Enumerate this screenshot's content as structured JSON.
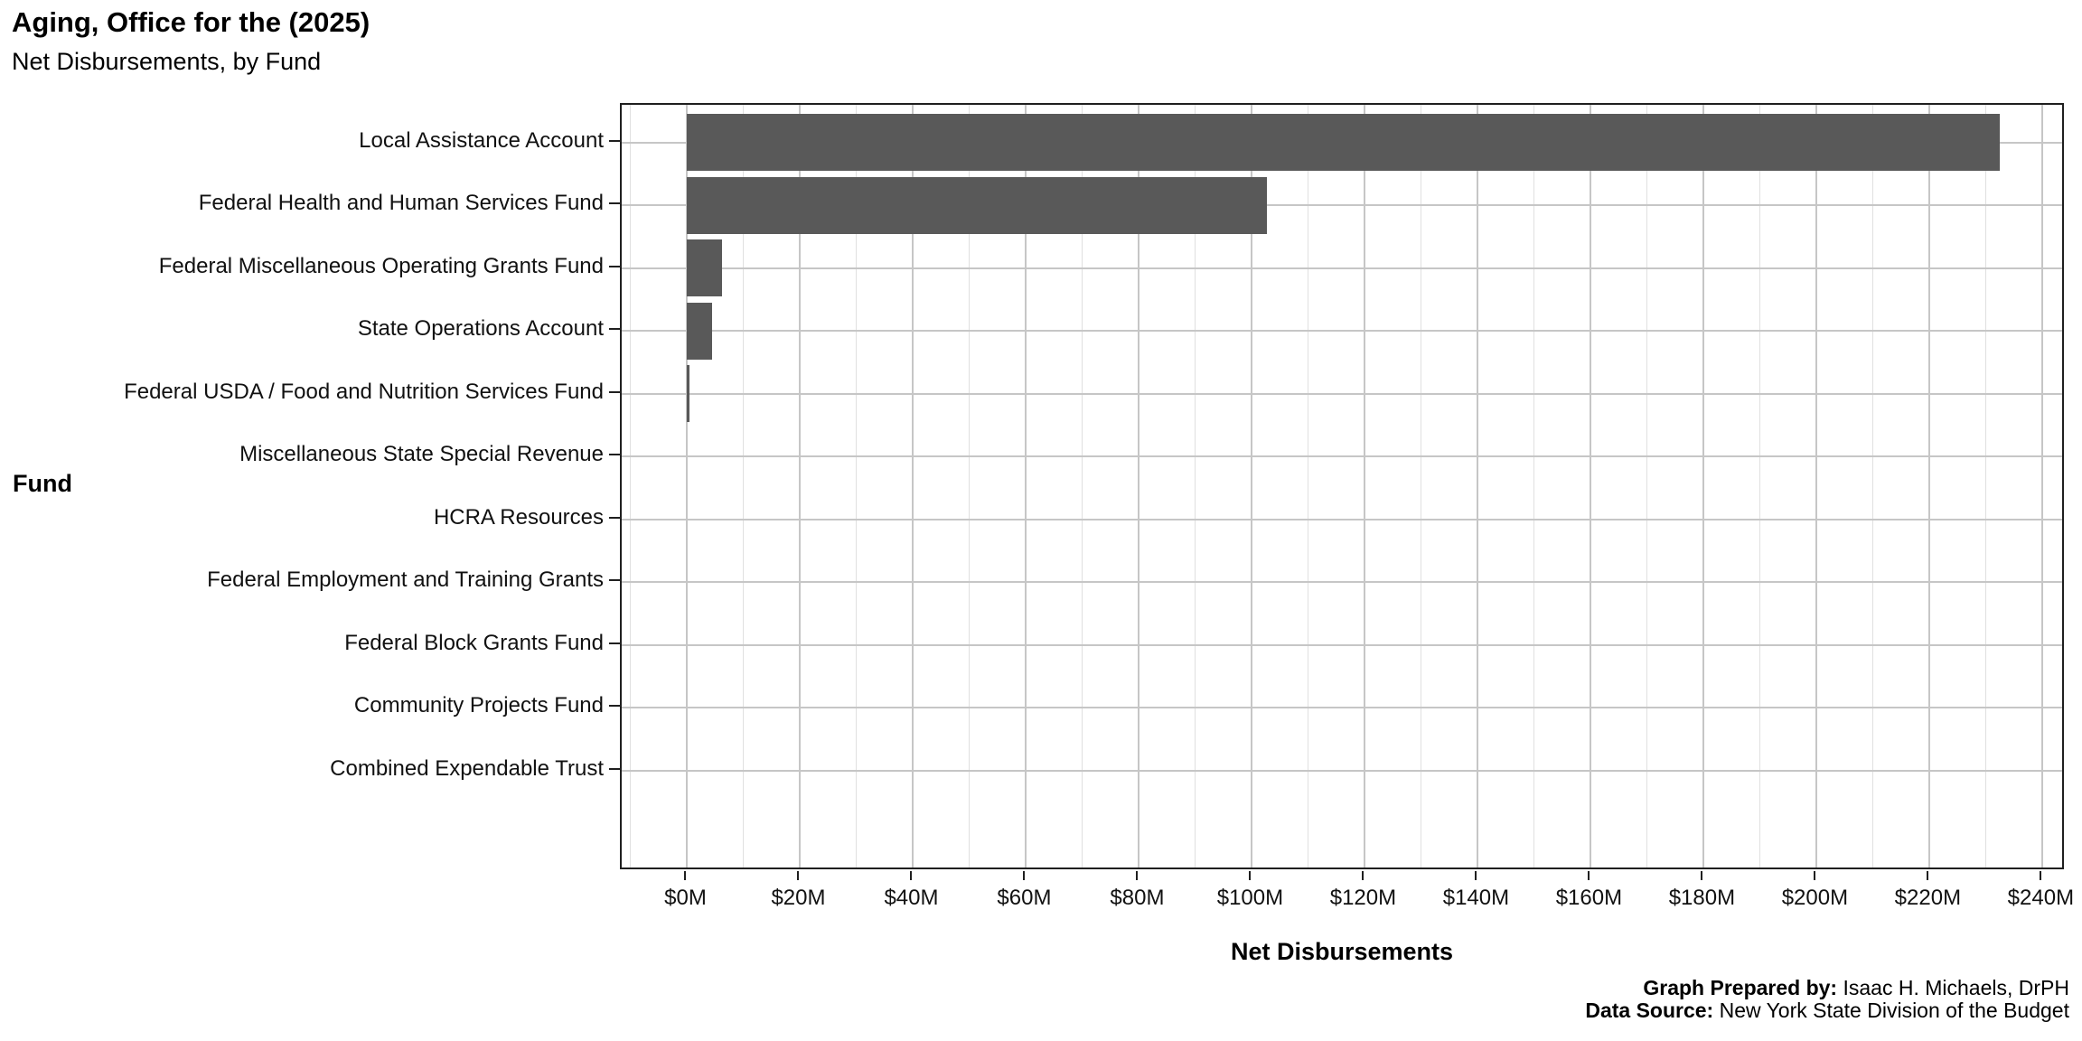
{
  "chart_data": {
    "type": "bar",
    "orientation": "horizontal",
    "title": "Aging, Office for the (2025)",
    "subtitle": "Net Disbursements, by Fund",
    "xlabel": "Net Disbursements",
    "ylabel": "Fund",
    "categories": [
      "Local Assistance Account",
      "Federal Health and Human Services Fund",
      "Federal Miscellaneous Operating Grants Fund",
      "State Operations Account",
      "Federal USDA / Food and Nutrition Services Fund",
      "Miscellaneous State Special Revenue",
      "HCRA Resources",
      "Federal Employment and Training Grants",
      "Federal Block Grants Fund",
      "Community Projects Fund",
      "Combined Expendable Trust"
    ],
    "values_millions": [
      232.5,
      102.7,
      6.2,
      4.4,
      0.4,
      0,
      0,
      0,
      0,
      0,
      0
    ],
    "x_tick_labels": [
      "$0M",
      "$20M",
      "$40M",
      "$60M",
      "$80M",
      "$100M",
      "$120M",
      "$140M",
      "$160M",
      "$180M",
      "$200M",
      "$220M",
      "$240M"
    ],
    "x_tick_values_millions": [
      0,
      20,
      40,
      60,
      80,
      100,
      120,
      140,
      160,
      180,
      200,
      220,
      240
    ],
    "x_minor_step_millions": 10,
    "xlim_millions": [
      -11.6,
      244.1
    ],
    "grid": true,
    "legend_position": "none",
    "colors": {
      "bar": "#595959",
      "grid_major": "#c6c6c6",
      "grid_minor": "#e0e0e0",
      "panel_border": "#1f1f1f",
      "text": "#000000"
    }
  },
  "caption": {
    "prepared_by_label": "Graph Prepared by:",
    "prepared_by_value": " Isaac H. Michaels, DrPH",
    "source_label": "Data Source:",
    "source_value": " New York State Division of the Budget"
  }
}
